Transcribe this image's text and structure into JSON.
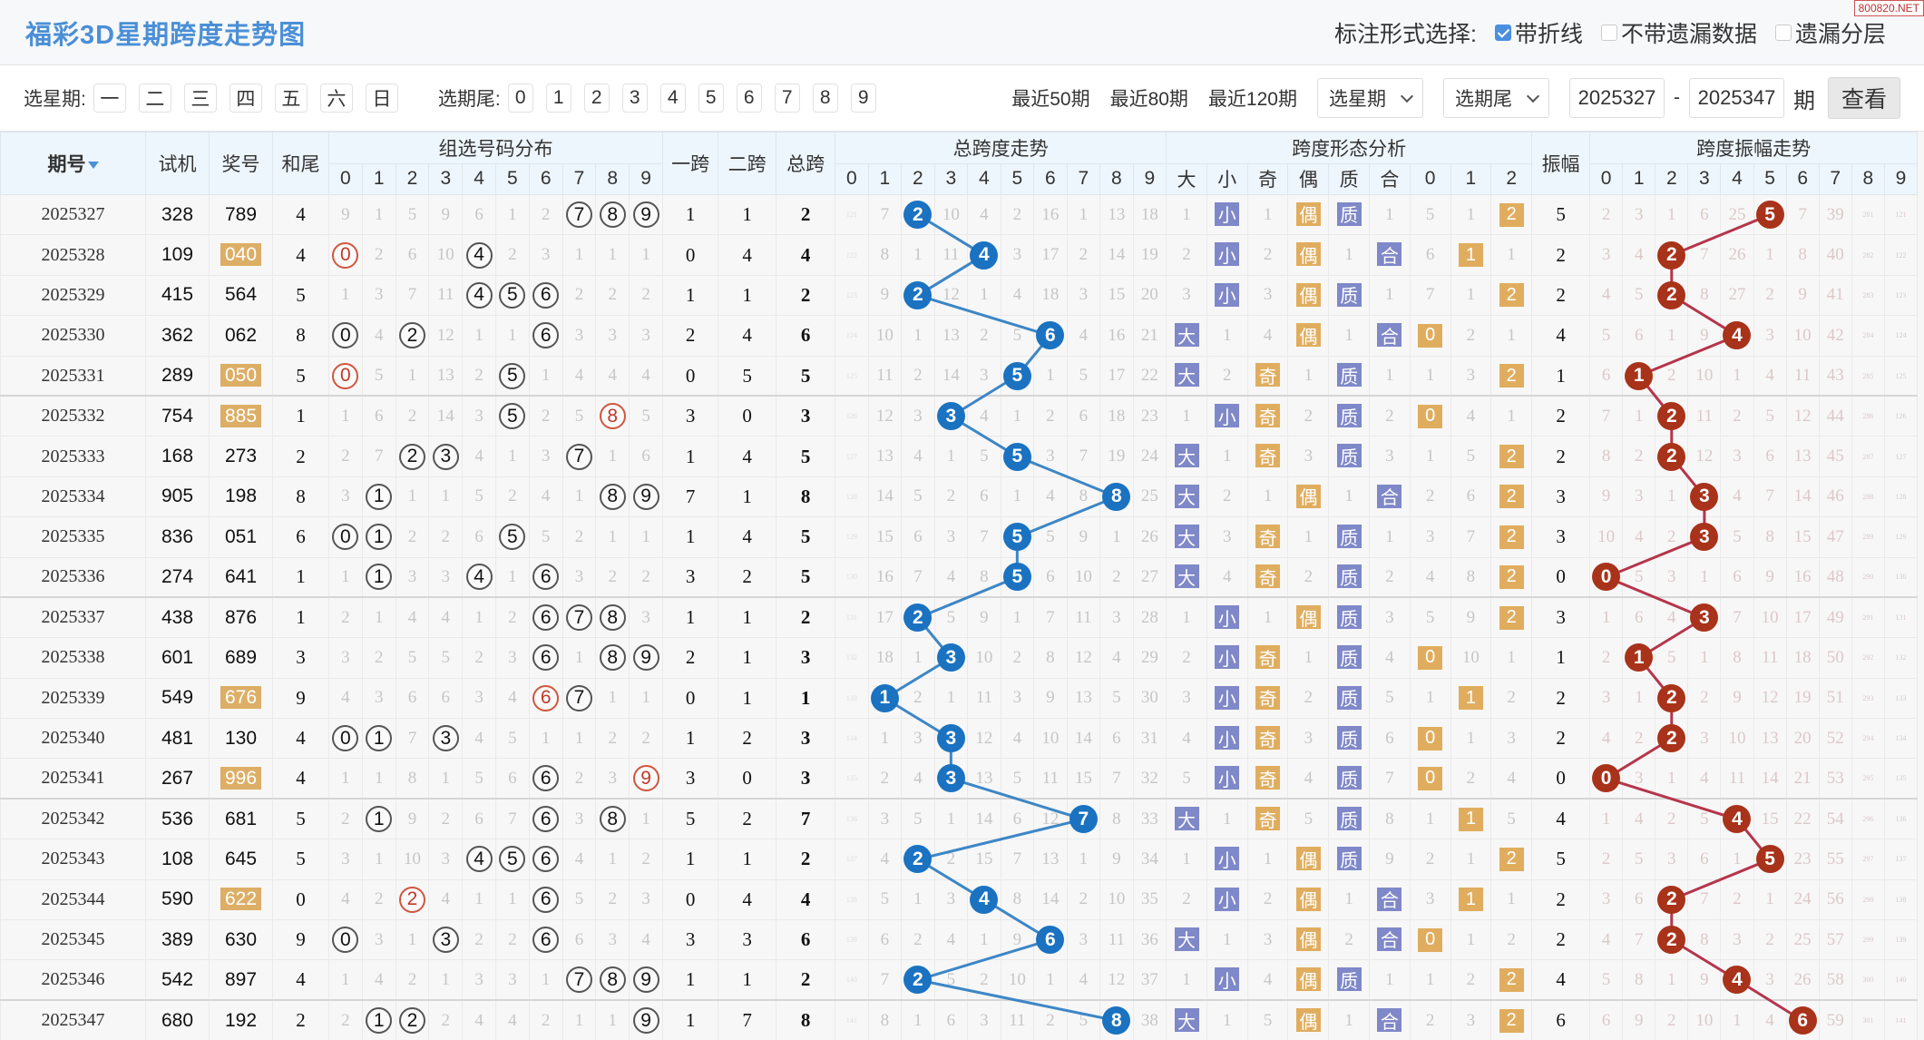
{
  "header": {
    "title": "福彩3D星期跨度走势图",
    "watermark": "800820.NET",
    "mark_label": "标注形式选择:",
    "options": [
      {
        "label": "带折线",
        "checked": true
      },
      {
        "label": "不带遗漏数据",
        "checked": false
      },
      {
        "label": "遗漏分层",
        "checked": false
      }
    ]
  },
  "toolbar": {
    "weekday_label": "选星期:",
    "weekdays": [
      "一",
      "二",
      "三",
      "四",
      "五",
      "六",
      "日"
    ],
    "tail_label": "选期尾:",
    "tails": [
      "0",
      "1",
      "2",
      "3",
      "4",
      "5",
      "6",
      "7",
      "8",
      "9"
    ],
    "recent": [
      "最近50期",
      "最近80期",
      "最近120期"
    ],
    "select_week": "选星期",
    "select_tail": "选期尾",
    "from": "2025327",
    "dash": "-",
    "to": "2025347",
    "period_suffix": "期",
    "query": "查看"
  },
  "columns": {
    "period": "期号",
    "trial": "试机",
    "award": "奖号",
    "sum_tail": "和尾",
    "group_dist": "组选号码分布",
    "span1": "一跨",
    "span2": "二跨",
    "span_total": "总跨",
    "span_trend": "总跨度走势",
    "shape": "跨度形态分析",
    "amplitude": "振幅",
    "amp_trend": "跨度振幅走势",
    "digits": [
      "0",
      "1",
      "2",
      "3",
      "4",
      "5",
      "6",
      "7",
      "8",
      "9"
    ],
    "shape_sub": [
      "大",
      "小",
      "奇",
      "偶",
      "质",
      "合",
      "0",
      "1",
      "2"
    ]
  },
  "colors": {
    "span_ball": "#1a72c1",
    "amp_ball": "#a8321a",
    "badge_purple": "#7f88c8",
    "badge_orange": "#e0ad5f",
    "title": "#4b8fd6"
  },
  "table": {
    "rows": [
      {
        "period": "2025327",
        "trial": "328",
        "award": "789",
        "sum_tail": 4,
        "dist": [
          9,
          1,
          5,
          9,
          6,
          1,
          2,
          null,
          null,
          null
        ],
        "span1": 1,
        "span2": 1,
        "span": 2,
        "span_miss": [
          121,
          7,
          null,
          10,
          4,
          2,
          16,
          1,
          13,
          18
        ],
        "shape": [
          1,
          "小",
          1,
          "偶",
          "质",
          1,
          5,
          1,
          "2"
        ],
        "amp": 5,
        "amp_miss": [
          2,
          3,
          1,
          6,
          25,
          null,
          7,
          39,
          281,
          121
        ]
      },
      {
        "period": "2025328",
        "trial": "109",
        "award": "040",
        "sum_tail": 4,
        "dist": [
          null,
          2,
          6,
          10,
          null,
          2,
          3,
          1,
          1,
          1
        ],
        "span1": 0,
        "span2": 4,
        "span": 4,
        "span_miss": [
          122,
          8,
          1,
          11,
          null,
          3,
          17,
          2,
          14,
          19
        ],
        "shape": [
          2,
          "小",
          2,
          "偶",
          1,
          "合",
          6,
          "1",
          1
        ],
        "amp": 2,
        "amp_miss": [
          3,
          4,
          null,
          7,
          26,
          1,
          8,
          40,
          282,
          122
        ]
      },
      {
        "period": "2025329",
        "trial": "415",
        "award": "564",
        "sum_tail": 5,
        "dist": [
          1,
          3,
          7,
          11,
          null,
          null,
          null,
          2,
          2,
          2
        ],
        "span1": 1,
        "span2": 1,
        "span": 2,
        "span_miss": [
          123,
          9,
          null,
          12,
          1,
          4,
          18,
          3,
          15,
          20
        ],
        "shape": [
          3,
          "小",
          3,
          "偶",
          "质",
          1,
          7,
          1,
          "2"
        ],
        "amp": 2,
        "amp_miss": [
          4,
          5,
          null,
          8,
          27,
          2,
          9,
          41,
          283,
          123
        ]
      },
      {
        "period": "2025330",
        "trial": "362",
        "award": "062",
        "sum_tail": 8,
        "dist": [
          null,
          4,
          null,
          12,
          1,
          1,
          null,
          3,
          3,
          3
        ],
        "span1": 2,
        "span2": 4,
        "span": 6,
        "span_miss": [
          124,
          10,
          1,
          13,
          2,
          5,
          null,
          4,
          16,
          21
        ],
        "shape": [
          "大",
          1,
          4,
          "偶",
          1,
          "合",
          "0",
          2,
          1
        ],
        "amp": 4,
        "amp_miss": [
          5,
          6,
          1,
          9,
          null,
          3,
          10,
          42,
          284,
          124
        ]
      },
      {
        "period": "2025331",
        "trial": "289",
        "award": "050",
        "sum_tail": 5,
        "dist": [
          null,
          5,
          1,
          13,
          2,
          null,
          1,
          4,
          4,
          4
        ],
        "span1": 0,
        "span2": 5,
        "span": 5,
        "span_miss": [
          125,
          11,
          2,
          14,
          3,
          null,
          1,
          5,
          17,
          22
        ],
        "shape": [
          "大",
          2,
          "奇",
          1,
          "质",
          1,
          1,
          3,
          "2"
        ],
        "amp": 1,
        "amp_miss": [
          6,
          null,
          2,
          10,
          1,
          4,
          11,
          43,
          285,
          125
        ]
      },
      {
        "period": "2025332",
        "trial": "754",
        "award": "885",
        "sum_tail": 1,
        "dist": [
          1,
          6,
          2,
          14,
          3,
          null,
          2,
          5,
          null,
          5
        ],
        "span1": 3,
        "span2": 0,
        "span": 3,
        "span_miss": [
          126,
          12,
          3,
          null,
          4,
          1,
          2,
          6,
          18,
          23
        ],
        "shape": [
          1,
          "小",
          "奇",
          2,
          "质",
          2,
          "0",
          4,
          1
        ],
        "amp": 2,
        "amp_miss": [
          7,
          1,
          null,
          11,
          2,
          5,
          12,
          44,
          286,
          126
        ]
      },
      {
        "period": "2025333",
        "trial": "168",
        "award": "273",
        "sum_tail": 2,
        "dist": [
          2,
          7,
          null,
          null,
          4,
          1,
          3,
          null,
          1,
          6
        ],
        "span1": 1,
        "span2": 4,
        "span": 5,
        "span_miss": [
          127,
          13,
          4,
          1,
          5,
          null,
          3,
          7,
          19,
          24
        ],
        "shape": [
          "大",
          1,
          "奇",
          3,
          "质",
          3,
          1,
          5,
          "2"
        ],
        "amp": 2,
        "amp_miss": [
          8,
          2,
          null,
          12,
          3,
          6,
          13,
          45,
          287,
          127
        ]
      },
      {
        "period": "2025334",
        "trial": "905",
        "award": "198",
        "sum_tail": 8,
        "dist": [
          3,
          null,
          1,
          1,
          5,
          2,
          4,
          1,
          null,
          null
        ],
        "span1": 7,
        "span2": 1,
        "span": 8,
        "span_miss": [
          128,
          14,
          5,
          2,
          6,
          1,
          4,
          8,
          null,
          25
        ],
        "shape": [
          "大",
          2,
          1,
          "偶",
          1,
          "合",
          2,
          6,
          "2"
        ],
        "amp": 3,
        "amp_miss": [
          9,
          3,
          1,
          null,
          4,
          7,
          14,
          46,
          288,
          128
        ]
      },
      {
        "period": "2025335",
        "trial": "836",
        "award": "051",
        "sum_tail": 6,
        "dist": [
          null,
          null,
          2,
          2,
          6,
          null,
          5,
          2,
          1,
          1
        ],
        "span1": 1,
        "span2": 4,
        "span": 5,
        "span_miss": [
          129,
          15,
          6,
          3,
          7,
          null,
          5,
          9,
          1,
          26
        ],
        "shape": [
          "大",
          3,
          "奇",
          1,
          "质",
          1,
          3,
          7,
          "2"
        ],
        "amp": 3,
        "amp_miss": [
          10,
          4,
          2,
          null,
          5,
          8,
          15,
          47,
          289,
          129
        ]
      },
      {
        "period": "2025336",
        "trial": "274",
        "award": "641",
        "sum_tail": 1,
        "dist": [
          1,
          null,
          3,
          3,
          null,
          1,
          null,
          3,
          2,
          2
        ],
        "span1": 3,
        "span2": 2,
        "span": 5,
        "span_miss": [
          130,
          16,
          7,
          4,
          8,
          null,
          6,
          10,
          2,
          27
        ],
        "shape": [
          "大",
          4,
          "奇",
          2,
          "质",
          2,
          4,
          8,
          "2"
        ],
        "amp": 0,
        "amp_miss": [
          null,
          5,
          3,
          1,
          6,
          9,
          16,
          48,
          290,
          130
        ]
      },
      {
        "period": "2025337",
        "trial": "438",
        "award": "876",
        "sum_tail": 1,
        "dist": [
          2,
          1,
          4,
          4,
          1,
          2,
          null,
          null,
          null,
          3
        ],
        "span1": 1,
        "span2": 1,
        "span": 2,
        "span_miss": [
          131,
          17,
          null,
          5,
          9,
          1,
          7,
          11,
          3,
          28
        ],
        "shape": [
          1,
          "小",
          1,
          "偶",
          "质",
          3,
          5,
          9,
          "2"
        ],
        "amp": 3,
        "amp_miss": [
          1,
          6,
          4,
          null,
          7,
          10,
          17,
          49,
          291,
          131
        ]
      },
      {
        "period": "2025338",
        "trial": "601",
        "award": "689",
        "sum_tail": 3,
        "dist": [
          3,
          2,
          5,
          5,
          2,
          3,
          null,
          1,
          null,
          null
        ],
        "span1": 2,
        "span2": 1,
        "span": 3,
        "span_miss": [
          132,
          18,
          1,
          null,
          10,
          2,
          8,
          12,
          4,
          29
        ],
        "shape": [
          2,
          "小",
          "奇",
          1,
          "质",
          4,
          "0",
          10,
          1
        ],
        "amp": 1,
        "amp_miss": [
          2,
          null,
          5,
          1,
          8,
          11,
          18,
          50,
          292,
          132
        ]
      },
      {
        "period": "2025339",
        "trial": "549",
        "award": "676",
        "sum_tail": 9,
        "dist": [
          4,
          3,
          6,
          6,
          3,
          4,
          null,
          null,
          1,
          1
        ],
        "span1": 0,
        "span2": 1,
        "span": 1,
        "span_miss": [
          133,
          null,
          2,
          1,
          11,
          3,
          9,
          13,
          5,
          30
        ],
        "shape": [
          3,
          "小",
          "奇",
          2,
          "质",
          5,
          1,
          "1",
          2
        ],
        "amp": 2,
        "amp_miss": [
          3,
          1,
          null,
          2,
          9,
          12,
          19,
          51,
          293,
          133
        ]
      },
      {
        "period": "2025340",
        "trial": "481",
        "award": "130",
        "sum_tail": 4,
        "dist": [
          null,
          null,
          7,
          null,
          4,
          5,
          1,
          1,
          2,
          2
        ],
        "span1": 1,
        "span2": 2,
        "span": 3,
        "span_miss": [
          134,
          1,
          3,
          null,
          12,
          4,
          10,
          14,
          6,
          31
        ],
        "shape": [
          4,
          "小",
          "奇",
          3,
          "质",
          6,
          "0",
          1,
          3
        ],
        "amp": 2,
        "amp_miss": [
          4,
          2,
          null,
          3,
          10,
          13,
          20,
          52,
          294,
          134
        ]
      },
      {
        "period": "2025341",
        "trial": "267",
        "award": "996",
        "sum_tail": 4,
        "dist": [
          1,
          1,
          8,
          1,
          5,
          6,
          null,
          2,
          3,
          null
        ],
        "span1": 3,
        "span2": 0,
        "span": 3,
        "span_miss": [
          135,
          2,
          4,
          null,
          13,
          5,
          11,
          15,
          7,
          32
        ],
        "shape": [
          5,
          "小",
          "奇",
          4,
          "质",
          7,
          "0",
          2,
          4
        ],
        "amp": 0,
        "amp_miss": [
          null,
          3,
          1,
          4,
          11,
          14,
          21,
          53,
          295,
          135
        ]
      },
      {
        "period": "2025342",
        "trial": "536",
        "award": "681",
        "sum_tail": 5,
        "dist": [
          2,
          null,
          9,
          2,
          6,
          7,
          null,
          3,
          null,
          1
        ],
        "span1": 5,
        "span2": 2,
        "span": 7,
        "span_miss": [
          136,
          3,
          5,
          1,
          14,
          6,
          12,
          null,
          8,
          33
        ],
        "shape": [
          "大",
          1,
          "奇",
          5,
          "质",
          8,
          1,
          "1",
          5
        ],
        "amp": 4,
        "amp_miss": [
          1,
          4,
          2,
          5,
          null,
          15,
          22,
          54,
          296,
          136
        ]
      },
      {
        "period": "2025343",
        "trial": "108",
        "award": "645",
        "sum_tail": 5,
        "dist": [
          3,
          1,
          10,
          3,
          null,
          null,
          null,
          4,
          1,
          2
        ],
        "span1": 1,
        "span2": 1,
        "span": 2,
        "span_miss": [
          137,
          4,
          null,
          2,
          15,
          7,
          13,
          1,
          9,
          34
        ],
        "shape": [
          1,
          "小",
          1,
          "偶",
          "质",
          9,
          2,
          1,
          "2"
        ],
        "amp": 5,
        "amp_miss": [
          2,
          5,
          3,
          6,
          1,
          null,
          23,
          55,
          297,
          137
        ]
      },
      {
        "period": "2025344",
        "trial": "590",
        "award": "622",
        "sum_tail": 0,
        "dist": [
          4,
          2,
          null,
          4,
          1,
          1,
          null,
          5,
          2,
          3
        ],
        "span1": 0,
        "span2": 4,
        "span": 4,
        "span_miss": [
          138,
          5,
          1,
          3,
          null,
          8,
          14,
          2,
          10,
          35
        ],
        "shape": [
          2,
          "小",
          2,
          "偶",
          1,
          "合",
          3,
          "1",
          1
        ],
        "amp": 2,
        "amp_miss": [
          3,
          6,
          null,
          7,
          2,
          1,
          24,
          56,
          298,
          138
        ]
      },
      {
        "period": "2025345",
        "trial": "389",
        "award": "630",
        "sum_tail": 9,
        "dist": [
          null,
          3,
          1,
          null,
          2,
          2,
          null,
          6,
          3,
          4
        ],
        "span1": 3,
        "span2": 3,
        "span": 6,
        "span_miss": [
          139,
          6,
          2,
          4,
          1,
          9,
          null,
          3,
          11,
          36
        ],
        "shape": [
          "大",
          1,
          3,
          "偶",
          2,
          "合",
          "0",
          1,
          2
        ],
        "amp": 2,
        "amp_miss": [
          4,
          7,
          null,
          8,
          3,
          2,
          25,
          57,
          299,
          139
        ]
      },
      {
        "period": "2025346",
        "trial": "542",
        "award": "897",
        "sum_tail": 4,
        "dist": [
          1,
          4,
          2,
          1,
          3,
          3,
          1,
          null,
          null,
          null
        ],
        "span1": 1,
        "span2": 1,
        "span": 2,
        "span_miss": [
          140,
          7,
          null,
          5,
          2,
          10,
          1,
          4,
          12,
          37
        ],
        "shape": [
          1,
          "小",
          4,
          "偶",
          "质",
          1,
          1,
          2,
          "2"
        ],
        "amp": 4,
        "amp_miss": [
          5,
          8,
          1,
          9,
          null,
          3,
          26,
          58,
          300,
          140
        ]
      },
      {
        "period": "2025347",
        "trial": "680",
        "award": "192",
        "sum_tail": 2,
        "dist": [
          2,
          null,
          null,
          2,
          4,
          4,
          2,
          1,
          1,
          null
        ],
        "span1": 1,
        "span2": 7,
        "span": 8,
        "span_miss": [
          141,
          8,
          1,
          6,
          3,
          11,
          2,
          5,
          null,
          38
        ],
        "shape": [
          "大",
          1,
          5,
          "偶",
          1,
          "合",
          2,
          3,
          "2"
        ],
        "amp": 6,
        "amp_miss": [
          6,
          9,
          2,
          10,
          1,
          4,
          null,
          59,
          301,
          141
        ]
      }
    ]
  }
}
